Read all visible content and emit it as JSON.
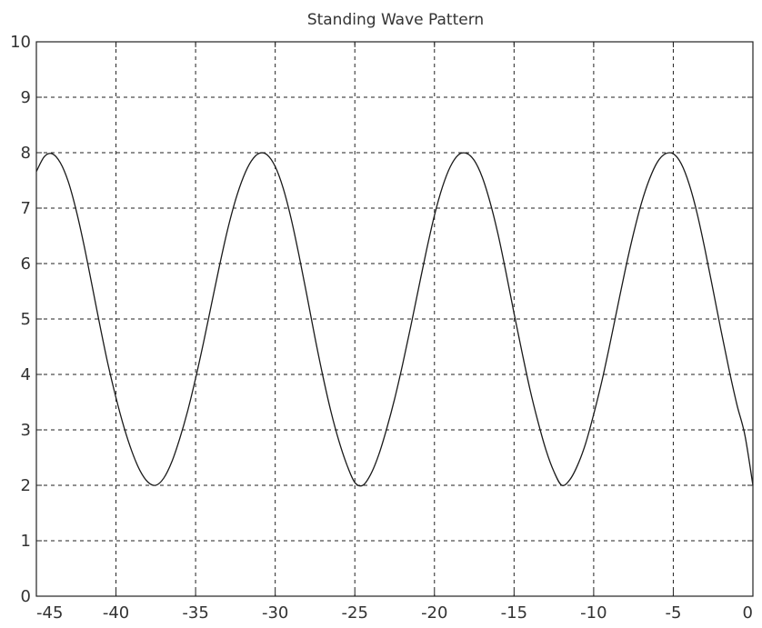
{
  "chart_data": {
    "type": "line",
    "title": "Standing Wave Pattern",
    "xlabel": "",
    "ylabel": "",
    "xlim": [
      -45,
      0
    ],
    "ylim": [
      0,
      10
    ],
    "xticks": [
      -45,
      -40,
      -35,
      -30,
      -25,
      -20,
      -15,
      -10,
      -5,
      0
    ],
    "yticks": [
      0,
      1,
      2,
      3,
      4,
      5,
      6,
      7,
      8,
      9,
      10
    ],
    "xtick_labels": [
      "-45",
      "-40",
      "-35",
      "-30",
      "-25",
      "-20",
      "-15",
      "-10",
      "-5",
      "0"
    ],
    "ytick_labels": [
      "0",
      "1",
      "2",
      "3",
      "4",
      "5",
      "6",
      "7",
      "8",
      "9",
      "10"
    ],
    "grid": true,
    "series": [
      {
        "color": "#1a1a1a",
        "x": [
          -45,
          -44.5,
          -44,
          -43.5,
          -43,
          -42.5,
          -42,
          -41.5,
          -41,
          -40.5,
          -40,
          -39.5,
          -39,
          -38.5,
          -38,
          -37.5,
          -37,
          -36.5,
          -36,
          -35.5,
          -35,
          -34.5,
          -34,
          -33.5,
          -33,
          -32.5,
          -32,
          -31.5,
          -31,
          -30.5,
          -30,
          -29.5,
          -29,
          -28.5,
          -28,
          -27.5,
          -27,
          -26.5,
          -26,
          -25.5,
          -25,
          -24.5,
          -24,
          -23.5,
          -23,
          -22.5,
          -22,
          -21.5,
          -21,
          -20.5,
          -20,
          -19.5,
          -19,
          -18.5,
          -18,
          -17.5,
          -17,
          -16.5,
          -16,
          -15.5,
          -15,
          -14.5,
          -14,
          -13.5,
          -13,
          -12.5,
          -12,
          -11.5,
          -11,
          -10.5,
          -10,
          -9.5,
          -9,
          -8.5,
          -8,
          -7.5,
          -7,
          -6.5,
          -6,
          -5.5,
          -5,
          -4.5,
          -4,
          -3.5,
          -3,
          -2.5,
          -2,
          -1.5,
          -1,
          -0.5,
          0
        ],
        "y": [
          7.66,
          7.93,
          7.98,
          7.82,
          7.48,
          6.96,
          6.32,
          5.6,
          4.87,
          4.18,
          3.58,
          3.05,
          2.61,
          2.27,
          2.06,
          2.0,
          2.13,
          2.42,
          2.84,
          3.34,
          3.93,
          4.58,
          5.27,
          5.96,
          6.6,
          7.14,
          7.56,
          7.85,
          7.99,
          7.96,
          7.75,
          7.36,
          6.81,
          6.14,
          5.41,
          4.66,
          3.96,
          3.33,
          2.8,
          2.37,
          2.05,
          2.0,
          2.2,
          2.55,
          3.02,
          3.56,
          4.18,
          4.85,
          5.55,
          6.24,
          6.87,
          7.38,
          7.75,
          7.96,
          7.99,
          7.86,
          7.56,
          7.1,
          6.52,
          5.83,
          5.1,
          4.4,
          3.73,
          3.15,
          2.64,
          2.25,
          2.0,
          2.1,
          2.37,
          2.76,
          3.28,
          3.86,
          4.52,
          5.22,
          5.91,
          6.54,
          7.09,
          7.52,
          7.83,
          7.98,
          7.98,
          7.8,
          7.43,
          6.9,
          6.24,
          5.52,
          4.79,
          4.09,
          3.45,
          2.9,
          2.0
        ]
      }
    ]
  }
}
